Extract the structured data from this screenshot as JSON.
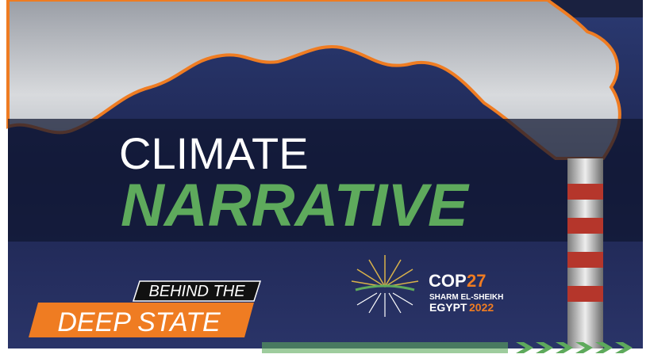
{
  "headline": {
    "line1": "CLIMATE",
    "line2": "NARRATIVE"
  },
  "badge": {
    "top": "BEHIND THE",
    "bottom": "DEEP STATE"
  },
  "logo": {
    "name": "COP",
    "number": "27",
    "location": "SHARM EL-SHEIKH",
    "country": "EGYPT",
    "year": "2022"
  }
}
